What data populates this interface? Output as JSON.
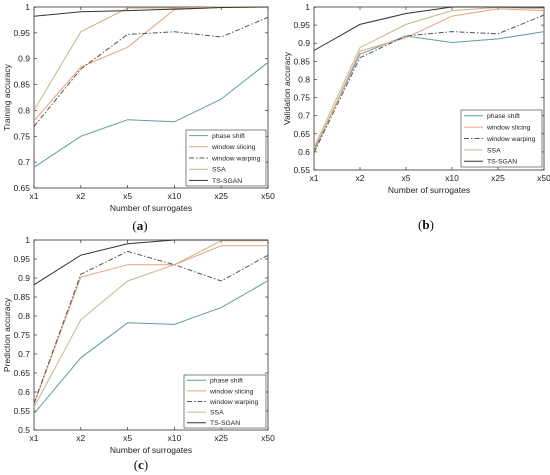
{
  "chart_data": [
    {
      "type": "line",
      "panel": "a",
      "caption": {
        "open": "(",
        "letter": "a",
        "close": ")"
      },
      "xlabel": "Number of surrogates",
      "ylabel": "Training accuracy",
      "categories": [
        "x1",
        "x2",
        "x5",
        "x10",
        "x25",
        "x50"
      ],
      "ylim": [
        0.65,
        1
      ],
      "yticks": [
        "0.65",
        "0.7",
        "0.75",
        "0.8",
        "0.85",
        "0.9",
        "0.95",
        "1"
      ],
      "legend_position": "bottom-right",
      "series": [
        {
          "name": "phase shift",
          "color": "#5f9ea0",
          "style": "solid",
          "values": [
            0.69,
            0.75,
            0.782,
            0.778,
            0.822,
            0.893
          ]
        },
        {
          "name": "window slicing",
          "color": "#e8a17c",
          "style": "solid",
          "values": [
            0.78,
            0.884,
            0.922,
            0.995,
            0.999,
            1.0
          ]
        },
        {
          "name": "window warping",
          "color": "#555555",
          "style": "dashdot",
          "values": [
            0.769,
            0.88,
            0.947,
            0.952,
            0.942,
            0.98
          ]
        },
        {
          "name": "SSA",
          "color": "#c8b48a",
          "style": "solid",
          "values": [
            0.8,
            0.952,
            0.998,
            0.998,
            1.0,
            1.0
          ]
        },
        {
          "name": "TS-SGAN",
          "color": "#333333",
          "style": "solid",
          "values": [
            0.982,
            0.991,
            0.993,
            0.996,
            0.999,
            1.0
          ]
        }
      ]
    },
    {
      "type": "line",
      "panel": "b",
      "caption": {
        "open": "(",
        "letter": "b",
        "close": ")"
      },
      "xlabel": "Number of surrogates",
      "ylabel": "Validation accuracy",
      "categories": [
        "x1",
        "x2",
        "x5",
        "x10",
        "x25",
        "x50"
      ],
      "ylim": [
        0.55,
        1
      ],
      "yticks": [
        "0.55",
        "0.6",
        "0.65",
        "0.7",
        "0.75",
        "0.8",
        "0.85",
        "0.9",
        "0.95",
        "1"
      ],
      "legend_position": "bottom-right",
      "series": [
        {
          "name": "phase shift",
          "color": "#5f9ea0",
          "style": "solid",
          "values": [
            0.605,
            0.87,
            0.92,
            0.902,
            0.912,
            0.932
          ]
        },
        {
          "name": "window slicing",
          "color": "#e8a17c",
          "style": "solid",
          "values": [
            0.6,
            0.878,
            0.915,
            0.975,
            0.995,
            0.99
          ]
        },
        {
          "name": "window warping",
          "color": "#555555",
          "style": "dashdot",
          "values": [
            0.598,
            0.86,
            0.92,
            0.932,
            0.926,
            0.978
          ]
        },
        {
          "name": "SSA",
          "color": "#c8b48a",
          "style": "solid",
          "values": [
            0.612,
            0.888,
            0.952,
            0.99,
            0.999,
            0.995
          ]
        },
        {
          "name": "TS-SGAN",
          "color": "#333333",
          "style": "solid",
          "values": [
            0.88,
            0.952,
            0.982,
            1.0,
            1.0,
            0.999
          ]
        }
      ]
    },
    {
      "type": "line",
      "panel": "c",
      "caption": {
        "open": "(",
        "letter": "c",
        "close": ")"
      },
      "xlabel": "Number of surrogates",
      "ylabel": "Prediction accuracy",
      "categories": [
        "x1",
        "x2",
        "x5",
        "x10",
        "x25",
        "x50"
      ],
      "ylim": [
        0.5,
        1
      ],
      "yticks": [
        "0.5",
        "0.55",
        "0.6",
        "0.65",
        "0.7",
        "0.75",
        "0.8",
        "0.85",
        "0.9",
        "0.95",
        "1"
      ],
      "legend_position": "bottom-right",
      "series": [
        {
          "name": "phase shift",
          "color": "#5f9ea0",
          "style": "solid",
          "values": [
            0.543,
            0.69,
            0.782,
            0.778,
            0.822,
            0.893
          ]
        },
        {
          "name": "window slicing",
          "color": "#e8a17c",
          "style": "solid",
          "values": [
            0.568,
            0.902,
            0.935,
            0.935,
            0.985,
            0.985
          ]
        },
        {
          "name": "window warping",
          "color": "#555555",
          "style": "dashdot",
          "values": [
            0.57,
            0.91,
            0.97,
            0.935,
            0.892,
            0.96
          ]
        },
        {
          "name": "SSA",
          "color": "#c8b48a",
          "style": "solid",
          "values": [
            0.56,
            0.79,
            0.892,
            0.935,
            0.998,
            0.998
          ]
        },
        {
          "name": "TS-SGAN",
          "color": "#333333",
          "style": "solid",
          "values": [
            0.882,
            0.96,
            0.99,
            1.0,
            1.0,
            1.0
          ]
        }
      ]
    }
  ]
}
